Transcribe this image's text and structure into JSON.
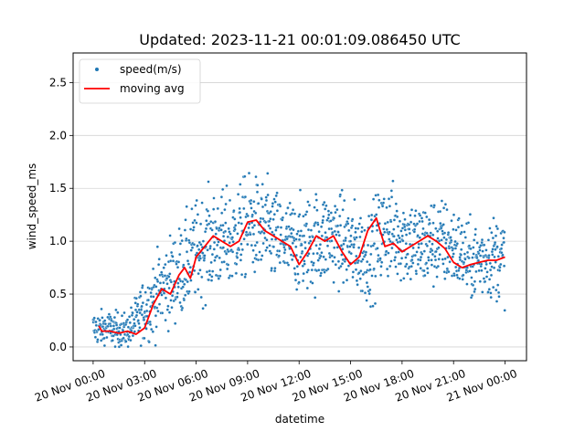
{
  "chart_data": {
    "type": "scatter",
    "title": "Updated: 2023-11-21 00:01:09.086450 UTC",
    "xlabel": "datetime",
    "ylabel": "wind_speed_ms",
    "xlim": [
      "2023-11-19T22:50:00",
      "2023-11-21T01:15:00"
    ],
    "ylim": [
      -0.13,
      2.78
    ],
    "x_ticks": [
      {
        "value": "2023-11-20T00:00:00",
        "label": "20 Nov 00:00"
      },
      {
        "value": "2023-11-20T03:00:00",
        "label": "20 Nov 03:00"
      },
      {
        "value": "2023-11-20T06:00:00",
        "label": "20 Nov 06:00"
      },
      {
        "value": "2023-11-20T09:00:00",
        "label": "20 Nov 09:00"
      },
      {
        "value": "2023-11-20T12:00:00",
        "label": "20 Nov 12:00"
      },
      {
        "value": "2023-11-20T15:00:00",
        "label": "20 Nov 15:00"
      },
      {
        "value": "2023-11-20T18:00:00",
        "label": "20 Nov 18:00"
      },
      {
        "value": "2023-11-20T21:00:00",
        "label": "20 Nov 21:00"
      },
      {
        "value": "2023-11-21T00:00:00",
        "label": "21 Nov 00:00"
      }
    ],
    "y_ticks": [
      {
        "value": 0.0,
        "label": "0.0"
      },
      {
        "value": 0.5,
        "label": "0.5"
      },
      {
        "value": 1.0,
        "label": "1.0"
      },
      {
        "value": 1.5,
        "label": "1.5"
      },
      {
        "value": 2.0,
        "label": "2.0"
      },
      {
        "value": 2.5,
        "label": "2.5"
      }
    ],
    "grid": "horizontal",
    "legend": {
      "placement": "top-left"
    },
    "series": [
      {
        "name": "speed(m/s)",
        "kind": "scatter",
        "color": "#1f77b4",
        "x_start": "2023-11-20T00:00:00",
        "x_end": "2023-11-21T00:00:00",
        "sampling": "approx. 1 point per minute (dense scatter); envelope summarized as mean/spread per hour",
        "hourly_mean": [
          0.18,
          0.17,
          0.15,
          0.35,
          0.55,
          0.7,
          0.9,
          1.0,
          1.0,
          1.15,
          1.1,
          1.0,
          0.95,
          1.0,
          1.05,
          0.95,
          0.85,
          1.1,
          1.05,
          0.95,
          1.0,
          0.95,
          0.8,
          0.85
        ],
        "hourly_spread": [
          0.2,
          0.22,
          0.2,
          0.4,
          0.5,
          0.55,
          0.6,
          0.6,
          0.6,
          0.6,
          0.6,
          0.55,
          0.55,
          0.6,
          0.55,
          0.55,
          0.55,
          0.6,
          0.55,
          0.55,
          0.55,
          0.5,
          0.45,
          0.5
        ]
      },
      {
        "name": "moving avg",
        "kind": "line",
        "color": "#ff0000",
        "x": [
          "2023-11-20T00:20:00",
          "2023-11-20T00:30:00",
          "2023-11-20T01:00:00",
          "2023-11-20T01:30:00",
          "2023-11-20T02:00:00",
          "2023-11-20T02:30:00",
          "2023-11-20T03:00:00",
          "2023-11-20T03:30:00",
          "2023-11-20T04:00:00",
          "2023-11-20T04:30:00",
          "2023-11-20T05:00:00",
          "2023-11-20T05:20:00",
          "2023-11-20T05:40:00",
          "2023-11-20T06:00:00",
          "2023-11-20T06:30:00",
          "2023-11-20T07:00:00",
          "2023-11-20T07:30:00",
          "2023-11-20T08:00:00",
          "2023-11-20T08:30:00",
          "2023-11-20T09:00:00",
          "2023-11-20T09:30:00",
          "2023-11-20T10:00:00",
          "2023-11-20T10:30:00",
          "2023-11-20T11:00:00",
          "2023-11-20T11:30:00",
          "2023-11-20T12:00:00",
          "2023-11-20T12:30:00",
          "2023-11-20T13:00:00",
          "2023-11-20T13:30:00",
          "2023-11-20T14:00:00",
          "2023-11-20T14:30:00",
          "2023-11-20T15:00:00",
          "2023-11-20T15:30:00",
          "2023-11-20T16:00:00",
          "2023-11-20T16:30:00",
          "2023-11-20T17:00:00",
          "2023-11-20T17:30:00",
          "2023-11-20T18:00:00",
          "2023-11-20T18:30:00",
          "2023-11-20T19:00:00",
          "2023-11-20T19:30:00",
          "2023-11-20T20:00:00",
          "2023-11-20T20:30:00",
          "2023-11-20T21:00:00",
          "2023-11-20T21:30:00",
          "2023-11-20T22:00:00",
          "2023-11-20T22:30:00",
          "2023-11-20T23:00:00",
          "2023-11-20T23:30:00",
          "2023-11-21T00:00:00"
        ],
        "y": [
          0.2,
          0.15,
          0.15,
          0.13,
          0.15,
          0.12,
          0.18,
          0.4,
          0.55,
          0.5,
          0.68,
          0.75,
          0.65,
          0.85,
          0.95,
          1.05,
          1.0,
          0.95,
          1.0,
          1.18,
          1.2,
          1.1,
          1.05,
          1.0,
          0.95,
          0.78,
          0.9,
          1.05,
          1.0,
          1.05,
          0.9,
          0.78,
          0.85,
          1.1,
          1.22,
          0.95,
          0.98,
          0.9,
          0.95,
          1.0,
          1.05,
          1.0,
          0.93,
          0.8,
          0.75,
          0.78,
          0.8,
          0.82,
          0.82,
          0.85
        ]
      }
    ]
  }
}
